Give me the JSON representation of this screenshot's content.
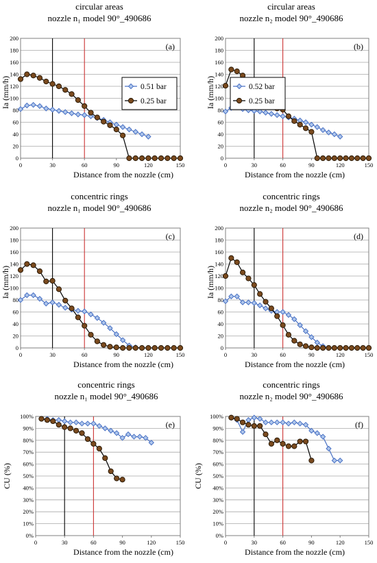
{
  "colors": {
    "s1": "#4a72c4",
    "s1_fill": "#aec6ec",
    "s2": "#2a1a08",
    "s2_fill": "#7a4a1e",
    "marker_vline": "#cc3333"
  },
  "chart_data": [
    {
      "type": "line",
      "title_line1": "circular areas",
      "title_line2": "nozzle n₁ model 90°_490686",
      "panel_label": "(a)",
      "xlabel": "Distance from the nozzle (cm)",
      "ylabel": "Ia (mm/h)",
      "xlim": [
        0,
        150
      ],
      "ylim": [
        0,
        200
      ],
      "xticks": [
        "0",
        "30",
        "60",
        "90",
        "120",
        "150"
      ],
      "yticks": [
        "0",
        "20",
        "40",
        "60",
        "80",
        "100",
        "120",
        "140",
        "160",
        "180",
        "200"
      ],
      "vlines": [
        30,
        60
      ],
      "legend": "top-right",
      "series": [
        {
          "name": "0.51 bar",
          "marker": "diamond",
          "x": [
            0,
            6,
            12,
            18,
            24,
            30,
            36,
            42,
            48,
            54,
            60,
            66,
            72,
            78,
            84,
            90,
            96,
            102,
            108,
            114,
            120
          ],
          "y": [
            82,
            88,
            89,
            87,
            83,
            81,
            79,
            77,
            75,
            73,
            72,
            70,
            67,
            64,
            60,
            56,
            52,
            48,
            44,
            40,
            36
          ]
        },
        {
          "name": "0.25 bar",
          "marker": "circle",
          "x": [
            0,
            6,
            12,
            18,
            24,
            30,
            36,
            42,
            48,
            54,
            60,
            66,
            72,
            78,
            84,
            90,
            96,
            102,
            108,
            114,
            120,
            126,
            132,
            138,
            144,
            150
          ],
          "y": [
            132,
            140,
            138,
            134,
            128,
            124,
            120,
            114,
            107,
            97,
            87,
            76,
            68,
            61,
            55,
            48,
            38,
            0,
            0,
            0,
            0,
            0,
            0,
            0,
            0,
            0
          ]
        }
      ]
    },
    {
      "type": "line",
      "title_line1": "circular areas",
      "title_line2": "nozzle n₂ model 90°_490686",
      "panel_label": "(b)",
      "xlabel": "Distance from the nozzle (cm)",
      "ylabel": "Ia (mm/h)",
      "xlim": [
        0,
        150
      ],
      "ylim": [
        0,
        200
      ],
      "xticks": [
        "0",
        "30",
        "60",
        "90",
        "120",
        "150"
      ],
      "yticks": [
        "0",
        "20",
        "40",
        "60",
        "80",
        "100",
        "120",
        "140",
        "160",
        "180",
        "200"
      ],
      "vlines": [
        30,
        60
      ],
      "legend": "top-right",
      "series": [
        {
          "name": "0.52 bar",
          "marker": "diamond",
          "x": [
            0,
            6,
            12,
            18,
            24,
            30,
            36,
            42,
            48,
            54,
            60,
            66,
            72,
            78,
            84,
            90,
            96,
            102,
            108,
            114,
            120
          ],
          "y": [
            78,
            84,
            86,
            82,
            80,
            79,
            78,
            76,
            74,
            72,
            70,
            68,
            66,
            63,
            60,
            56,
            52,
            47,
            43,
            40,
            36
          ]
        },
        {
          "name": "0.25 bar",
          "marker": "circle",
          "x": [
            0,
            6,
            12,
            18,
            24,
            30,
            36,
            42,
            48,
            54,
            60,
            66,
            72,
            78,
            84,
            90,
            96,
            102,
            108,
            114,
            120,
            126,
            132,
            138,
            144,
            150
          ],
          "y": [
            121,
            148,
            145,
            138,
            130,
            122,
            112,
            101,
            92,
            83,
            81,
            70,
            62,
            56,
            50,
            44,
            0,
            0,
            0,
            0,
            0,
            0,
            0,
            0,
            0,
            0
          ]
        }
      ]
    },
    {
      "type": "line",
      "title_line1": "concentric rings",
      "title_line2": "nozzle n₁ model 90°_490686",
      "panel_label": "(c)",
      "xlabel": "Distance from the nozzle (cm)",
      "ylabel": "Ia (mm/h)",
      "xlim": [
        0,
        150
      ],
      "ylim": [
        0,
        200
      ],
      "xticks": [
        "0",
        "30",
        "60",
        "90",
        "120",
        "150"
      ],
      "yticks": [
        "0",
        "20",
        "40",
        "60",
        "80",
        "100",
        "120",
        "140",
        "160",
        "180",
        "200"
      ],
      "vlines": [
        30,
        60
      ],
      "series": [
        {
          "marker": "diamond",
          "x": [
            0,
            6,
            12,
            18,
            24,
            30,
            36,
            42,
            48,
            54,
            60,
            66,
            72,
            78,
            84,
            90,
            96,
            102,
            108,
            114,
            120,
            126,
            132,
            138,
            144,
            150
          ],
          "y": [
            80,
            88,
            88,
            82,
            74,
            76,
            72,
            67,
            64,
            62,
            61,
            56,
            50,
            42,
            33,
            23,
            13,
            4,
            1,
            0,
            0,
            0,
            0,
            0,
            0,
            0
          ]
        },
        {
          "marker": "circle",
          "x": [
            0,
            6,
            12,
            18,
            24,
            30,
            36,
            42,
            48,
            54,
            60,
            66,
            72,
            78,
            84,
            90,
            96,
            102,
            108,
            114,
            120,
            126,
            132,
            138,
            144,
            150
          ],
          "y": [
            130,
            140,
            138,
            128,
            111,
            112,
            98,
            79,
            66,
            51,
            37,
            22,
            11,
            5,
            2,
            1,
            0,
            0,
            0,
            0,
            0,
            0,
            0,
            0,
            0,
            0
          ]
        }
      ]
    },
    {
      "type": "line",
      "title_line1": "concentric rings",
      "title_line2": "nozzle n₂ model 90°_490686",
      "panel_label": "(d)",
      "xlabel": "Distance from the nozzle (cm)",
      "ylabel": "Ia (mm/h)",
      "xlim": [
        0,
        150
      ],
      "ylim": [
        0,
        200
      ],
      "xticks": [
        "0",
        "30",
        "60",
        "90",
        "120",
        "150"
      ],
      "yticks": [
        "0",
        "20",
        "40",
        "60",
        "80",
        "100",
        "120",
        "140",
        "160",
        "180",
        "200"
      ],
      "vlines": [
        30,
        60
      ],
      "series": [
        {
          "marker": "diamond",
          "x": [
            0,
            6,
            12,
            18,
            24,
            30,
            36,
            42,
            48,
            54,
            60,
            66,
            72,
            78,
            84,
            90,
            96,
            102,
            108,
            114,
            120,
            126,
            132,
            138,
            144,
            150
          ],
          "y": [
            78,
            86,
            86,
            76,
            76,
            75,
            71,
            66,
            62,
            60,
            60,
            55,
            48,
            38,
            28,
            18,
            9,
            3,
            0,
            0,
            0,
            0,
            0,
            0,
            0,
            0
          ]
        },
        {
          "marker": "circle",
          "x": [
            0,
            6,
            12,
            18,
            24,
            30,
            36,
            42,
            48,
            54,
            60,
            66,
            72,
            78,
            84,
            90,
            96,
            102,
            108,
            114,
            120,
            126,
            132,
            138,
            144,
            150
          ],
          "y": [
            120,
            150,
            143,
            126,
            116,
            105,
            90,
            77,
            66,
            53,
            38,
            22,
            12,
            6,
            3,
            1,
            0,
            0,
            0,
            0,
            0,
            0,
            0,
            0,
            0,
            0
          ]
        }
      ]
    },
    {
      "type": "line",
      "title_line1": "concentric rings",
      "title_line2": "nozzle n₁ model 90°_490686",
      "panel_label": "(e)",
      "xlabel": "Distance from the nozzle (cm)",
      "ylabel": "CU (%)",
      "xlim": [
        0,
        150
      ],
      "ylim": [
        0,
        100
      ],
      "xticks": [
        "0",
        "30",
        "60",
        "90",
        "120",
        "150"
      ],
      "yticks": [
        "0%",
        "10%",
        "20%",
        "30%",
        "40%",
        "50%",
        "60%",
        "70%",
        "80%",
        "90%",
        "100%"
      ],
      "vlines": [
        30,
        60
      ],
      "series": [
        {
          "marker": "diamond",
          "x": [
            6,
            12,
            18,
            24,
            30,
            36,
            42,
            48,
            54,
            60,
            66,
            72,
            78,
            84,
            90,
            96,
            102,
            108,
            114,
            120
          ],
          "y": [
            98,
            98,
            97,
            97,
            96,
            95,
            95,
            94,
            94,
            94,
            92,
            90,
            88,
            86,
            82,
            85,
            83,
            83,
            82,
            78
          ]
        },
        {
          "marker": "circle",
          "x": [
            6,
            12,
            18,
            24,
            30,
            36,
            42,
            48,
            54,
            60,
            66,
            72,
            78,
            84,
            90
          ],
          "y": [
            98,
            97,
            96,
            93,
            91,
            90,
            88,
            86,
            81,
            77,
            73,
            65,
            54,
            48,
            47
          ]
        }
      ]
    },
    {
      "type": "line",
      "title_line1": "concentric rings",
      "title_line2": "nozzle n₂ model 90°_490686",
      "panel_label": "(f)",
      "xlabel": "Distance from the nozzle (cm)",
      "ylabel": "CU (%)",
      "xlim": [
        0,
        150
      ],
      "ylim": [
        0,
        100
      ],
      "xticks": [
        "0",
        "30",
        "60",
        "90",
        "120",
        "150"
      ],
      "yticks": [
        "0%",
        "10%",
        "20%",
        "30%",
        "40%",
        "50%",
        "60%",
        "70%",
        "80%",
        "90%",
        "100%"
      ],
      "vlines": [
        30,
        60
      ],
      "series": [
        {
          "marker": "diamond",
          "x": [
            6,
            12,
            18,
            24,
            30,
            36,
            42,
            48,
            54,
            60,
            66,
            72,
            78,
            84,
            90,
            96,
            102,
            108,
            114,
            120
          ],
          "y": [
            99,
            97,
            87,
            97,
            99,
            98,
            95,
            95,
            95,
            95,
            94,
            95,
            94,
            93,
            88,
            86,
            83,
            73,
            63,
            63
          ]
        },
        {
          "marker": "circle",
          "x": [
            6,
            12,
            18,
            24,
            30,
            36,
            42,
            48,
            54,
            60,
            66,
            72,
            78,
            84,
            90
          ],
          "y": [
            99,
            98,
            95,
            93,
            92,
            92,
            85,
            77,
            80,
            77,
            75,
            75,
            79,
            79,
            63
          ]
        }
      ]
    }
  ]
}
